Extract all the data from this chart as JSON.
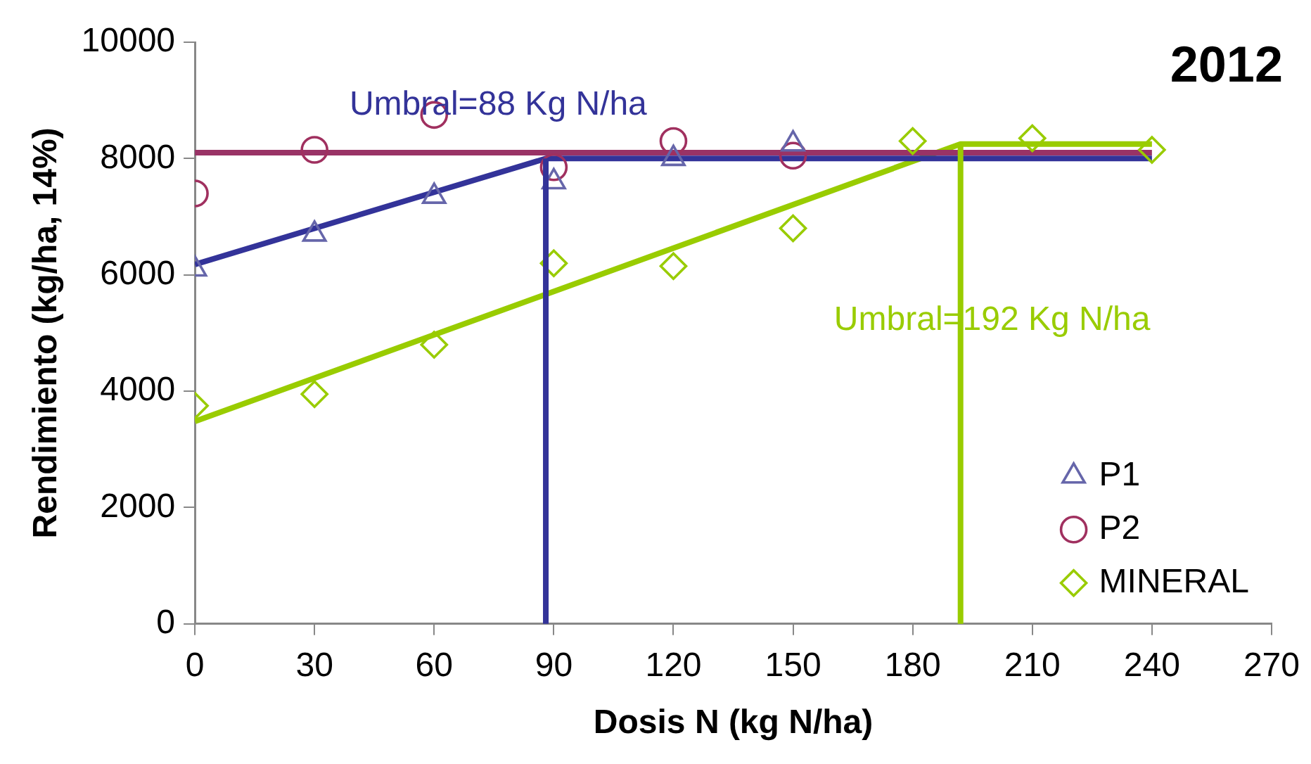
{
  "chart_data": {
    "type": "scatter",
    "title": "2012",
    "xlabel": "Dosis N (kg N/ha)",
    "ylabel": "Rendimiento (kg/ha, 14%)",
    "xlim": [
      0,
      270
    ],
    "xticks": [
      0,
      30,
      60,
      90,
      120,
      150,
      180,
      210,
      240,
      270
    ],
    "ylim": [
      0,
      10000
    ],
    "yticks": [
      0,
      2000,
      4000,
      6000,
      8000,
      10000
    ],
    "grid": false,
    "legend": "bottom right",
    "series": [
      {
        "name": "P1",
        "marker": "triangle",
        "color": "#6666aa",
        "x": [
          0,
          30,
          60,
          90,
          120,
          150
        ],
        "values": [
          6100,
          6700,
          7350,
          7600,
          8000,
          8250
        ]
      },
      {
        "name": "P2",
        "marker": "circle",
        "color": "#a0305f",
        "x": [
          0,
          30,
          60,
          90,
          120,
          150
        ],
        "values": [
          7400,
          8150,
          8750,
          7850,
          8300,
          8050
        ]
      },
      {
        "name": "MINERAL",
        "marker": "diamond",
        "color": "#99cc00",
        "x": [
          0,
          30,
          60,
          90,
          120,
          150,
          180,
          210,
          240
        ],
        "values": [
          3750,
          3950,
          4800,
          6200,
          6150,
          6800,
          8300,
          8350,
          8150
        ]
      },
      {
        "type": "line",
        "marker": "none",
        "color": "#333399",
        "x": [
          0,
          88,
          240
        ],
        "values": [
          6180,
          8000,
          8000
        ]
      },
      {
        "type": "line",
        "marker": "none",
        "color": "#993366",
        "x": [
          0,
          240
        ],
        "values": [
          8100,
          8100
        ]
      },
      {
        "type": "line",
        "marker": "none",
        "color": "#99cc00",
        "x": [
          0,
          192,
          240
        ],
        "values": [
          3480,
          8250,
          8250
        ]
      }
    ],
    "ref_lines": [
      {
        "axis": "x",
        "value": 88,
        "label": "Umbral=88 Kg N/ha",
        "color": "#333399"
      },
      {
        "axis": "x",
        "value": 192,
        "label": "Umbral=192 Kg N/ha",
        "color": "#99cc00"
      }
    ]
  }
}
